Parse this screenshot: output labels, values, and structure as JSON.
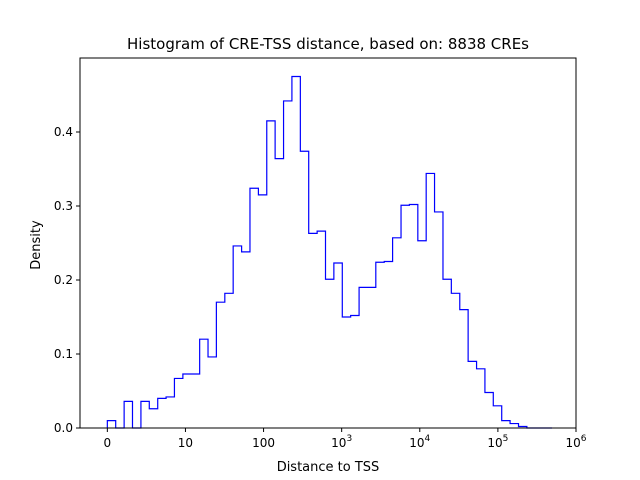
{
  "chart_data": {
    "type": "histogram-step",
    "title": "Histogram of CRE-TSS distance, based on: 8838 CREs",
    "xlabel": "Distance to TSS",
    "ylabel": "Density",
    "xscale": "symlog",
    "xlim": [
      -0.35,
      6
    ],
    "ylim": [
      0,
      0.5
    ],
    "grid": false,
    "line_color": "#0000ff",
    "x_ticks": [
      {
        "pos": 0,
        "label": "0"
      },
      {
        "pos": 1,
        "label": "10"
      },
      {
        "pos": 2,
        "label": "100"
      },
      {
        "pos": 3,
        "base": "10",
        "exp": "3"
      },
      {
        "pos": 4,
        "base": "10",
        "exp": "4"
      },
      {
        "pos": 5,
        "base": "10",
        "exp": "5"
      },
      {
        "pos": 6,
        "base": "10",
        "exp": "6"
      }
    ],
    "y_ticks": [
      0.0,
      0.1,
      0.2,
      0.3,
      0.4
    ],
    "y_tick_labels": [
      "0.0",
      "0.1",
      "0.2",
      "0.3",
      "0.4"
    ],
    "bin_edges": [
      0.0,
      0.107,
      0.215,
      0.322,
      0.43,
      0.537,
      0.645,
      0.752,
      0.859,
      0.967,
      1.074,
      1.182,
      1.289,
      1.396,
      1.504,
      1.611,
      1.719,
      1.826,
      1.934,
      2.041,
      2.148,
      2.256,
      2.363,
      2.471,
      2.578,
      2.686,
      2.793,
      2.9,
      3.008,
      3.115,
      3.223,
      3.33,
      3.437,
      3.545,
      3.652,
      3.76,
      3.867,
      3.975,
      4.082,
      4.189,
      4.297,
      4.404,
      4.512,
      4.619,
      4.727,
      4.834,
      4.941,
      5.049,
      5.156,
      5.264,
      5.371,
      5.478,
      5.586,
      5.693
    ],
    "density": [
      0.01,
      0.0,
      0.036,
      0.0,
      0.036,
      0.026,
      0.04,
      0.042,
      0.067,
      0.073,
      0.073,
      0.12,
      0.096,
      0.17,
      0.182,
      0.246,
      0.238,
      0.324,
      0.315,
      0.415,
      0.364,
      0.442,
      0.475,
      0.374,
      0.263,
      0.266,
      0.201,
      0.223,
      0.15,
      0.152,
      0.19,
      0.19,
      0.224,
      0.225,
      0.257,
      0.301,
      0.302,
      0.253,
      0.344,
      0.292,
      0.201,
      0.182,
      0.16,
      0.09,
      0.08,
      0.048,
      0.03,
      0.01,
      0.006,
      0.002,
      0.0,
      0.0,
      0.0
    ]
  }
}
